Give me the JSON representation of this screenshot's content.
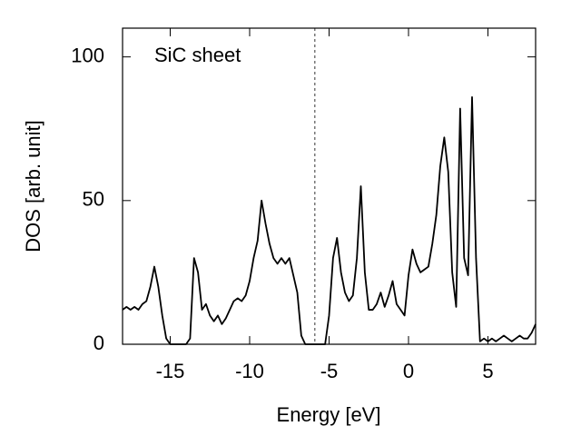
{
  "chart_data": {
    "type": "line",
    "annotation": "SiC sheet",
    "xlabel": "Energy  [eV]",
    "ylabel": "DOS  [arb. unit]",
    "color": "#000000",
    "fermi_level": -5.9,
    "xlim": [
      -18,
      8
    ],
    "xticks": [
      -15,
      -10,
      -5,
      0,
      5
    ],
    "ylim": [
      0,
      110
    ],
    "yticks": [
      0,
      50,
      100
    ],
    "x": [
      -18,
      -17.75,
      -17.5,
      -17.25,
      -17,
      -16.75,
      -16.5,
      -16.25,
      -16,
      -15.75,
      -15.5,
      -15.25,
      -15,
      -14.75,
      -14.5,
      -14.25,
      -14,
      -13.75,
      -13.5,
      -13.25,
      -13,
      -12.75,
      -12.5,
      -12.25,
      -12,
      -11.75,
      -11.5,
      -11.25,
      -11,
      -10.75,
      -10.5,
      -10.25,
      -10,
      -9.75,
      -9.5,
      -9.25,
      -9,
      -8.75,
      -8.5,
      -8.25,
      -8,
      -7.75,
      -7.5,
      -7.25,
      -7,
      -6.75,
      -6.5,
      -6.25,
      -6,
      -5.75,
      -5.5,
      -5.25,
      -5,
      -4.75,
      -4.5,
      -4.25,
      -4,
      -3.75,
      -3.5,
      -3.25,
      -3,
      -2.75,
      -2.5,
      -2.25,
      -2,
      -1.75,
      -1.5,
      -1.25,
      -1,
      -0.75,
      -0.5,
      -0.25,
      0,
      0.25,
      0.5,
      0.75,
      1,
      1.25,
      1.5,
      1.75,
      2,
      2.25,
      2.5,
      2.75,
      3,
      3.25,
      3.5,
      3.75,
      4,
      4.25,
      4.5,
      4.75,
      5,
      5.25,
      5.5,
      5.75,
      6,
      6.25,
      6.5,
      6.75,
      7,
      7.25,
      7.5,
      7.75,
      8
    ],
    "values": [
      12,
      13,
      12,
      13,
      12,
      14,
      15,
      20,
      27,
      20,
      10,
      2,
      0,
      0,
      0,
      0,
      0,
      2,
      30,
      25,
      12,
      14,
      10,
      8,
      10,
      7,
      9,
      12,
      15,
      16,
      15,
      17,
      22,
      30,
      36,
      50,
      42,
      35,
      30,
      28,
      30,
      28,
      30,
      24,
      18,
      3,
      0,
      0,
      0,
      0,
      0,
      0,
      10,
      30,
      37,
      25,
      18,
      15,
      17,
      30,
      55,
      25,
      12,
      12,
      14,
      18,
      13,
      17,
      22,
      14,
      12,
      10,
      24,
      33,
      28,
      25,
      26,
      27,
      35,
      45,
      62,
      72,
      60,
      25,
      13,
      82,
      30,
      24,
      86,
      30,
      1,
      2,
      1,
      2,
      1,
      2,
      3,
      2,
      1,
      2,
      3,
      2,
      2,
      4,
      7
    ]
  }
}
